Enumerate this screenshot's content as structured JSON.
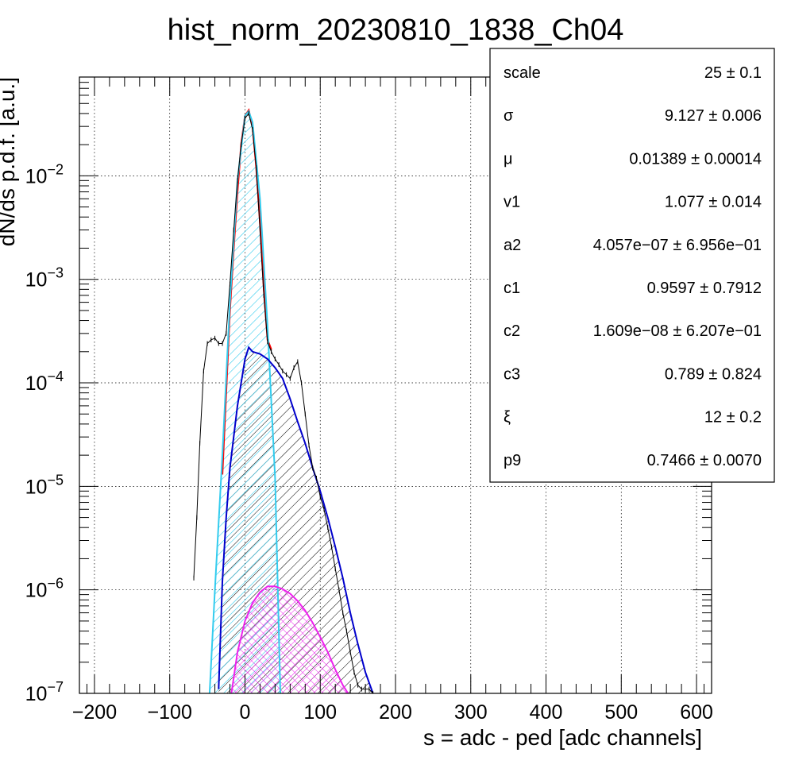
{
  "chart_data": {
    "type": "line",
    "title": "hist_norm_20230810_1838_Ch04",
    "xlabel": "s = adc - ped [adc channels]",
    "ylabel": "dN/ds p.d.f. [a.u.]",
    "xlim": [
      -220,
      620
    ],
    "ylim": [
      1e-07,
      0.09
    ],
    "yscale": "log",
    "grid": true,
    "x_ticks": [
      -200,
      -100,
      0,
      100,
      200,
      300,
      400,
      500,
      600
    ],
    "y_ticks": [
      {
        "value": 1e-07,
        "base": "10",
        "exp": "−7"
      },
      {
        "value": 1e-06,
        "base": "10",
        "exp": "−6"
      },
      {
        "value": 1e-05,
        "base": "10",
        "exp": "−5"
      },
      {
        "value": 0.0001,
        "base": "10",
        "exp": "−4"
      },
      {
        "value": 0.001,
        "base": "10",
        "exp": "−3"
      },
      {
        "value": 0.01,
        "base": "10",
        "exp": "−2"
      }
    ],
    "series": [
      {
        "role": "data histogram",
        "color": "#000000",
        "x": [
          -68,
          -64,
          -60,
          -55,
          -50,
          -45,
          -40,
          -35,
          -30,
          -25,
          -20,
          -15,
          -10,
          -5,
          0,
          5,
          10,
          15,
          20,
          25,
          30,
          35,
          40,
          45,
          50,
          55,
          60,
          65,
          70,
          75,
          80,
          85,
          90,
          95,
          100,
          105,
          110,
          115,
          120,
          125,
          130,
          135,
          140,
          145,
          150,
          155,
          160,
          165,
          170
        ],
        "y": [
          1.3e-06,
          5e-06,
          2.6e-05,
          0.00013,
          0.00024,
          0.00026,
          0.00027,
          0.00024,
          0.00024,
          0.0003,
          0.0009,
          0.003,
          0.009,
          0.02,
          0.036,
          0.04,
          0.028,
          0.012,
          0.003,
          0.0007,
          0.00025,
          0.0002,
          0.00017,
          0.00015,
          0.00013,
          0.00012,
          0.00011,
          0.00014,
          0.00016,
          0.0001,
          5e-05,
          2.5e-05,
          1.5e-05,
          1.2e-05,
          8e-06,
          6e-06,
          4e-06,
          2.6e-06,
          1.6e-06,
          1e-06,
          6e-07,
          4e-07,
          2.5e-07,
          1.6e-07,
          1.2e-07,
          1.1e-07,
          1.1e-07,
          1.1e-07,
          1e-07
        ]
      },
      {
        "role": "total fit",
        "color": "#ff0000",
        "x": [
          -30,
          -20,
          -15,
          -10,
          -5,
          0,
          5,
          10,
          15,
          20,
          25,
          30,
          35
        ],
        "y": [
          1.3e-05,
          0.0005,
          0.002,
          0.007,
          0.02,
          0.038,
          0.043,
          0.03,
          0.012,
          0.0035,
          0.0008,
          0.00026,
          0.00021
        ]
      },
      {
        "role": "pedestal component",
        "color": "#33ccee",
        "x": [
          -47,
          -40,
          -30,
          -20,
          -10,
          0,
          5,
          10,
          20,
          30,
          40,
          47
        ],
        "y": [
          1e-07,
          1e-06,
          2e-05,
          0.0006,
          0.009,
          0.038,
          0.042,
          0.033,
          0.006,
          0.00035,
          1.2e-05,
          1e-07
        ]
      },
      {
        "role": "single photo-electron component",
        "color": "#0000cc",
        "x": [
          -35,
          -30,
          -25,
          -20,
          -10,
          0,
          5,
          10,
          20,
          30,
          40,
          50,
          60,
          70,
          80,
          90,
          100,
          110,
          120,
          130,
          140,
          150,
          160,
          170
        ],
        "y": [
          1.1e-07,
          1.2e-06,
          5e-06,
          1.5e-05,
          6e-05,
          0.00017,
          0.00022,
          0.0002,
          0.00019,
          0.00017,
          0.00014,
          0.00011,
          7e-05,
          4.2e-05,
          2.6e-05,
          1.5e-05,
          9e-06,
          5e-06,
          2.6e-06,
          1.3e-06,
          6e-07,
          3e-07,
          1.6e-07,
          1e-07
        ]
      },
      {
        "role": "two photo-electron component",
        "color": "#ee22ee",
        "x": [
          -18,
          -10,
          0,
          10,
          20,
          30,
          40,
          50,
          60,
          70,
          80,
          90,
          100,
          110,
          120,
          130,
          137
        ],
        "y": [
          1e-07,
          2.5e-07,
          5e-07,
          7.5e-07,
          9.5e-07,
          1.08e-06,
          1.08e-06,
          1.02e-06,
          9.2e-07,
          7.8e-07,
          6.3e-07,
          4.8e-07,
          3.5e-07,
          2.5e-07,
          1.7e-07,
          1.2e-07,
          1e-07
        ]
      }
    ],
    "stats_box": [
      {
        "name": "scale",
        "value": "25 ± 0.1"
      },
      {
        "name": "σ",
        "value": "9.127 ± 0.006"
      },
      {
        "name": "μ",
        "value": "0.01389 ± 0.00014"
      },
      {
        "name": "v1",
        "value": "1.077 ± 0.014"
      },
      {
        "name": "a2",
        "value": "4.057e−07 ± 6.956e−01"
      },
      {
        "name": "c1",
        "value": "0.9597 ± 0.7912"
      },
      {
        "name": "c2",
        "value": "1.609e−08 ± 6.207e−01"
      },
      {
        "name": "c3",
        "value": "0.789 ± 0.824"
      },
      {
        "name": "ξ",
        "value": "12 ± 0.2"
      },
      {
        "name": "p9",
        "value": "0.7466 ± 0.0070"
      }
    ]
  }
}
